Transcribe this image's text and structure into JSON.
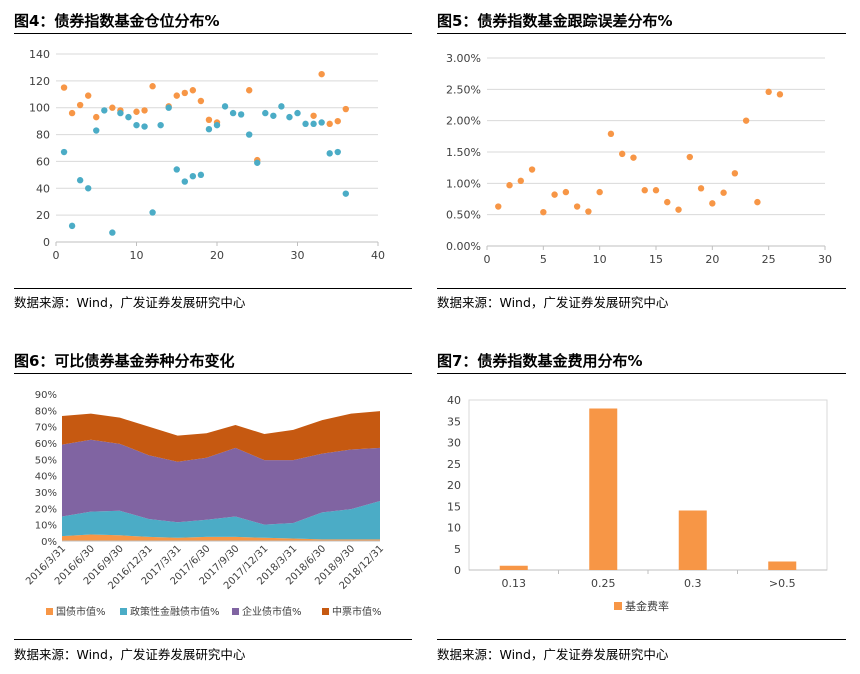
{
  "colors": {
    "orange": "#F79646",
    "teal": "#4BACC6",
    "purple": "#8064A2",
    "brown": "#C65911",
    "lightorange": "#F4A460",
    "grid": "#D9D9D9",
    "axis": "#BFBFBF"
  },
  "panels": {
    "fig4": {
      "title": "图4：债券指数基金仓位分布%",
      "source": "数据来源：Wind，广发证券发展研究中心"
    },
    "fig5": {
      "title": "图5：债券指数基金跟踪误差分布%",
      "source": "数据来源：Wind，广发证券发展研究中心"
    },
    "fig6": {
      "title": "图6：可比债券基金券种分布变化",
      "source": "数据来源：Wind，广发证券发展研究中心"
    },
    "fig7": {
      "title": "图7：债券指数基金费用分布%",
      "source": "数据来源：Wind，广发证券发展研究中心"
    }
  },
  "chart_data": [
    {
      "id": "fig4",
      "type": "scatter",
      "title": "图4：债券指数基金仓位分布%",
      "xlim": [
        0,
        40
      ],
      "ylim": [
        0,
        140
      ],
      "xticks": [
        "0",
        "10",
        "20",
        "30",
        "40"
      ],
      "yticks": [
        "0",
        "20",
        "40",
        "60",
        "80",
        "100",
        "120",
        "140"
      ],
      "grid": true,
      "series": [
        {
          "color": "#F79646",
          "points": [
            [
              1,
              115
            ],
            [
              2,
              96
            ],
            [
              3,
              102
            ],
            [
              4,
              109
            ],
            [
              5,
              93
            ],
            [
              7,
              100
            ],
            [
              8,
              98
            ],
            [
              10,
              97
            ],
            [
              11,
              98
            ],
            [
              12,
              116
            ],
            [
              14,
              101
            ],
            [
              15,
              109
            ],
            [
              16,
              111
            ],
            [
              17,
              113
            ],
            [
              18,
              105
            ],
            [
              19,
              91
            ],
            [
              20,
              89
            ],
            [
              24,
              113
            ],
            [
              25,
              61
            ],
            [
              32,
              94
            ],
            [
              33,
              125
            ],
            [
              34,
              88
            ],
            [
              35,
              90
            ],
            [
              36,
              99
            ]
          ]
        },
        {
          "color": "#4BACC6",
          "points": [
            [
              1,
              67
            ],
            [
              2,
              12
            ],
            [
              3,
              46
            ],
            [
              4,
              40
            ],
            [
              5,
              83
            ],
            [
              6,
              98
            ],
            [
              7,
              7
            ],
            [
              8,
              96
            ],
            [
              9,
              93
            ],
            [
              10,
              87
            ],
            [
              11,
              86
            ],
            [
              12,
              22
            ],
            [
              13,
              87
            ],
            [
              14,
              100
            ],
            [
              15,
              54
            ],
            [
              16,
              45
            ],
            [
              17,
              49
            ],
            [
              18,
              50
            ],
            [
              19,
              84
            ],
            [
              20,
              87
            ],
            [
              21,
              101
            ],
            [
              22,
              96
            ],
            [
              23,
              95
            ],
            [
              24,
              80
            ],
            [
              25,
              59
            ],
            [
              26,
              96
            ],
            [
              27,
              94
            ],
            [
              28,
              101
            ],
            [
              29,
              93
            ],
            [
              30,
              96
            ],
            [
              31,
              88
            ],
            [
              32,
              88
            ],
            [
              33,
              89
            ],
            [
              34,
              66
            ],
            [
              35,
              67
            ],
            [
              36,
              36
            ]
          ]
        }
      ]
    },
    {
      "id": "fig5",
      "type": "scatter",
      "title": "图5：债券指数基金跟踪误差分布%",
      "xlim": [
        0,
        30
      ],
      "ylim": [
        0,
        3
      ],
      "xticks": [
        "0",
        "5",
        "10",
        "15",
        "20",
        "25",
        "30"
      ],
      "yticks": [
        "0.00%",
        "0.50%",
        "1.00%",
        "1.50%",
        "2.00%",
        "2.50%",
        "3.00%"
      ],
      "grid": true,
      "series": [
        {
          "color": "#F79646",
          "points": [
            [
              1,
              0.63
            ],
            [
              2,
              0.97
            ],
            [
              3,
              1.04
            ],
            [
              4,
              1.22
            ],
            [
              5,
              0.54
            ],
            [
              6,
              0.82
            ],
            [
              7,
              0.86
            ],
            [
              8,
              0.63
            ],
            [
              9,
              0.55
            ],
            [
              10,
              0.86
            ],
            [
              11,
              1.79
            ],
            [
              12,
              1.47
            ],
            [
              13,
              1.41
            ],
            [
              14,
              0.89
            ],
            [
              15,
              0.89
            ],
            [
              16,
              0.7
            ],
            [
              17,
              0.58
            ],
            [
              18,
              1.42
            ],
            [
              19,
              0.92
            ],
            [
              20,
              0.68
            ],
            [
              21,
              0.85
            ],
            [
              22,
              1.16
            ],
            [
              23,
              2.0
            ],
            [
              24,
              0.7
            ],
            [
              25,
              2.46
            ],
            [
              26,
              2.42
            ]
          ]
        }
      ]
    },
    {
      "id": "fig6",
      "type": "area",
      "title": "图6：可比债券基金券种分布变化",
      "categories": [
        "2016/3/31",
        "2016/6/30",
        "2016/9/30",
        "2016/12/31",
        "2017/3/31",
        "2017/6/30",
        "2017/9/30",
        "2017/12/31",
        "2018/3/31",
        "2018/6/30",
        "2018/9/30",
        "2018/12/31"
      ],
      "ylim": [
        0,
        90
      ],
      "yticks": [
        "0%",
        "10%",
        "20%",
        "30%",
        "40%",
        "50%",
        "60%",
        "70%",
        "80%",
        "90%"
      ],
      "stacked": true,
      "legend": "bottom",
      "series": [
        {
          "name": "国债市值%",
          "color": "#F79646",
          "values": [
            3,
            4,
            3.5,
            2.5,
            2,
            2.5,
            2.5,
            2,
            1.5,
            1,
            1,
            1
          ]
        },
        {
          "name": "政策性金融债市值%",
          "color": "#4BACC6",
          "values": [
            12,
            14,
            15,
            11,
            9.5,
            10.5,
            12.5,
            8,
            9.5,
            16.5,
            18.5,
            23.5
          ]
        },
        {
          "name": "企业债市值%",
          "color": "#8064A2",
          "values": [
            44,
            44,
            41,
            39,
            37,
            38,
            42,
            39.5,
            38.5,
            36,
            36.5,
            32.5
          ]
        },
        {
          "name": "中票市值%",
          "color": "#C65911",
          "values": [
            17.5,
            16,
            16,
            17.5,
            16,
            15,
            14,
            16,
            18.5,
            20.5,
            22,
            22.5
          ]
        }
      ]
    },
    {
      "id": "fig7",
      "type": "bar",
      "title": "图7：债券指数基金费用分布%",
      "categories": [
        "0.13",
        "0.25",
        "0.3",
        ">0.5"
      ],
      "ylim": [
        0,
        40
      ],
      "yticks": [
        "0",
        "5",
        "10",
        "15",
        "20",
        "25",
        "30",
        "35",
        "40"
      ],
      "legend": "bottom",
      "series": [
        {
          "name": "基金费率",
          "color": "#F79646",
          "values": [
            1,
            38,
            14,
            2
          ]
        }
      ]
    }
  ]
}
